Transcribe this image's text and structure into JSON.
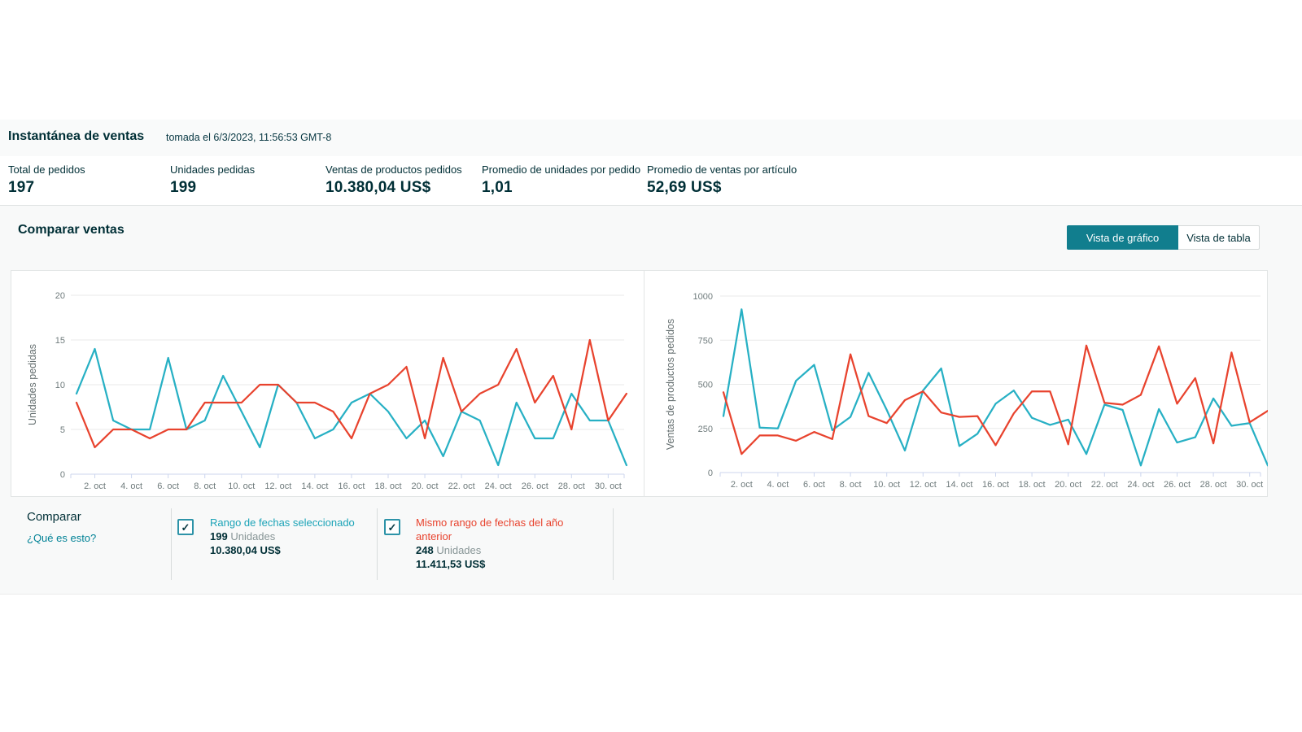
{
  "header": {
    "title": "Instantánea de ventas",
    "timestamp": "tomada el 6/3/2023, 11:56:53 GMT-8"
  },
  "metrics": [
    {
      "label": "Total de pedidos",
      "value": "197"
    },
    {
      "label": "Unidades pedidas",
      "value": "199"
    },
    {
      "label": "Ventas de productos pedidos",
      "value": "10.380,04 US$"
    },
    {
      "label": "Promedio de unidades por pedido",
      "value": "1,01"
    },
    {
      "label": "Promedio de ventas por artículo",
      "value": "52,69 US$"
    }
  ],
  "compare": {
    "title": "Comparar ventas",
    "toggle": {
      "chart_view": "Vista de gráfico",
      "table_view": "Vista de tabla",
      "active": "chart_view"
    },
    "legend": {
      "heading": "Comparar",
      "help_link": "¿Qué es esto?",
      "items": [
        {
          "checked": true,
          "title": "Rango de fechas seleccionado",
          "units": "199",
          "units_label": "Unidades",
          "sales": "10.380,04 US$",
          "color": "#1ba3b7"
        },
        {
          "checked": true,
          "title": "Mismo rango de fechas del año anterior",
          "units": "248",
          "units_label": "Unidades",
          "sales": "11.411,53 US$",
          "color": "#e8432e"
        }
      ]
    }
  },
  "icons": {
    "checkbox_check": "✓"
  },
  "colors": {
    "accent_teal_button": "#117e8e",
    "line_selected": "#27b0c4",
    "line_prior": "#e8432e",
    "link_teal": "#008296",
    "dark_text": "#002f36",
    "axis_text": "#6f7b7c"
  },
  "chart_data": [
    {
      "type": "line",
      "name": "unidades-pedidas",
      "ylabel": "Unidades pedidas",
      "ylim": [
        0,
        20
      ],
      "yticks": [
        0,
        5,
        10,
        15,
        20
      ],
      "x_range": "1-31 October, daily points",
      "x_tick_labels": [
        "2. oct",
        "4. oct",
        "6. oct",
        "8. oct",
        "10. oct",
        "12. oct",
        "14. oct",
        "16. oct",
        "18. oct",
        "20. oct",
        "22. oct",
        "24. oct",
        "26. oct",
        "28. oct",
        "30. oct"
      ],
      "grid": true,
      "legend_position": "below",
      "series": [
        {
          "name": "Rango de fechas seleccionado",
          "color": "#27b0c4",
          "values": [
            9,
            14,
            6,
            5,
            5,
            13,
            5,
            6,
            11,
            7,
            3,
            10,
            8,
            4,
            5,
            8,
            9,
            7,
            4,
            6,
            2,
            7,
            6,
            1,
            8,
            4,
            4,
            9,
            6,
            6,
            1
          ]
        },
        {
          "name": "Mismo rango de fechas del año anterior",
          "color": "#e8432e",
          "values": [
            8,
            3,
            5,
            5,
            4,
            5,
            5,
            8,
            8,
            8,
            10,
            10,
            8,
            8,
            7,
            4,
            9,
            10,
            12,
            4,
            13,
            7,
            9,
            10,
            14,
            8,
            11,
            5,
            15,
            6,
            9
          ]
        }
      ]
    },
    {
      "type": "line",
      "name": "ventas-de-productos-pedidos",
      "ylabel": "Ventas de productos pedidos",
      "ylim": [
        0,
        1000
      ],
      "yticks": [
        0,
        250,
        500,
        750,
        1000
      ],
      "x_range": "1-31 October, daily points",
      "x_tick_labels": [
        "2. oct",
        "4. oct",
        "6. oct",
        "8. oct",
        "10. oct",
        "12. oct",
        "14. oct",
        "16. oct",
        "18. oct",
        "20. oct",
        "22. oct",
        "24. oct",
        "26. oct",
        "28. oct",
        "30. oct"
      ],
      "grid": true,
      "legend_position": "below",
      "series": [
        {
          "name": "Rango de fechas seleccionado",
          "color": "#27b0c4",
          "values": [
            320,
            925,
            255,
            250,
            520,
            610,
            240,
            315,
            565,
            355,
            125,
            465,
            590,
            150,
            220,
            390,
            465,
            310,
            270,
            300,
            105,
            385,
            355,
            40,
            360,
            170,
            200,
            420,
            265,
            280,
            40
          ]
        },
        {
          "name": "Mismo rango de fechas del año anterior",
          "color": "#e8432e",
          "values": [
            455,
            105,
            210,
            210,
            180,
            230,
            190,
            670,
            320,
            280,
            410,
            460,
            340,
            315,
            320,
            155,
            335,
            460,
            460,
            160,
            720,
            395,
            385,
            440,
            715,
            390,
            535,
            165,
            680,
            285,
            350
          ]
        }
      ]
    }
  ]
}
